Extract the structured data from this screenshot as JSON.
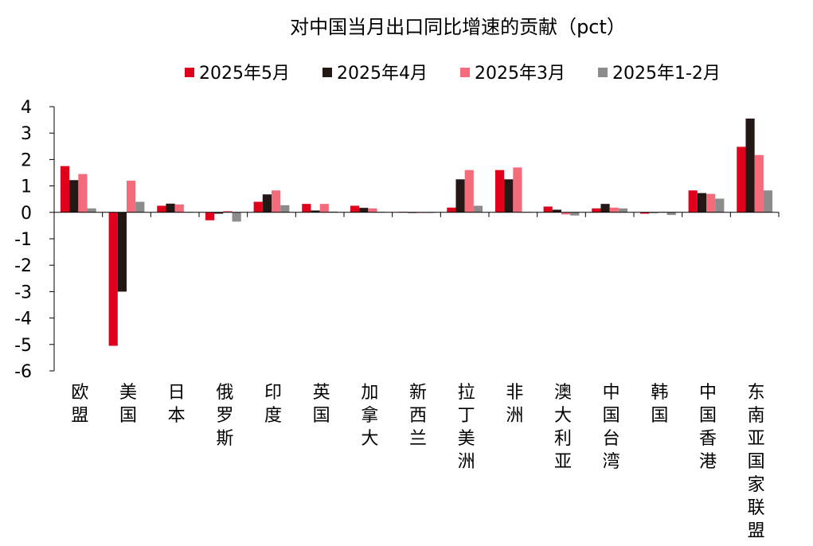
{
  "chart_data": {
    "type": "bar",
    "title": "对中国当月出口同比增速的贡献（pct）",
    "xlabel": "",
    "ylabel": "",
    "ylim": [
      -6,
      4
    ],
    "yticks": [
      4,
      3,
      2,
      1,
      0,
      -1,
      -2,
      -3,
      -4,
      -5,
      -6
    ],
    "grid": false,
    "legend_position": "top",
    "categories": [
      "欧盟",
      "美国",
      "日本",
      "俄罗斯",
      "印度",
      "英国",
      "加拿大",
      "新西兰",
      "拉丁美洲",
      "非洲",
      "澳大利亚",
      "中国台湾",
      "韩国",
      "中国香港",
      "东南亚国家联盟"
    ],
    "series": [
      {
        "name": "2025年5月",
        "color": "#E0001B",
        "values": [
          1.75,
          -5.05,
          0.25,
          -0.3,
          0.4,
          0.32,
          0.25,
          0.02,
          0.18,
          1.6,
          0.22,
          0.15,
          -0.05,
          0.83,
          2.48
        ]
      },
      {
        "name": "2025年4月",
        "color": "#231815",
        "values": [
          1.22,
          -3.0,
          0.33,
          -0.05,
          0.68,
          0.07,
          0.17,
          0.0,
          1.25,
          1.25,
          0.1,
          0.32,
          -0.02,
          0.73,
          3.55
        ]
      },
      {
        "name": "2025年3月",
        "color": "#F46B7C",
        "values": [
          1.45,
          1.2,
          0.3,
          0.05,
          0.83,
          0.32,
          0.15,
          0.0,
          1.6,
          1.7,
          -0.08,
          0.18,
          0.02,
          0.7,
          2.17
        ]
      },
      {
        "name": "2025年1-2月",
        "color": "#8C8C8C",
        "values": [
          0.15,
          0.4,
          0.02,
          -0.35,
          0.27,
          0.03,
          0.02,
          -0.02,
          0.25,
          0.02,
          -0.12,
          0.15,
          -0.1,
          0.52,
          0.83
        ]
      }
    ]
  }
}
